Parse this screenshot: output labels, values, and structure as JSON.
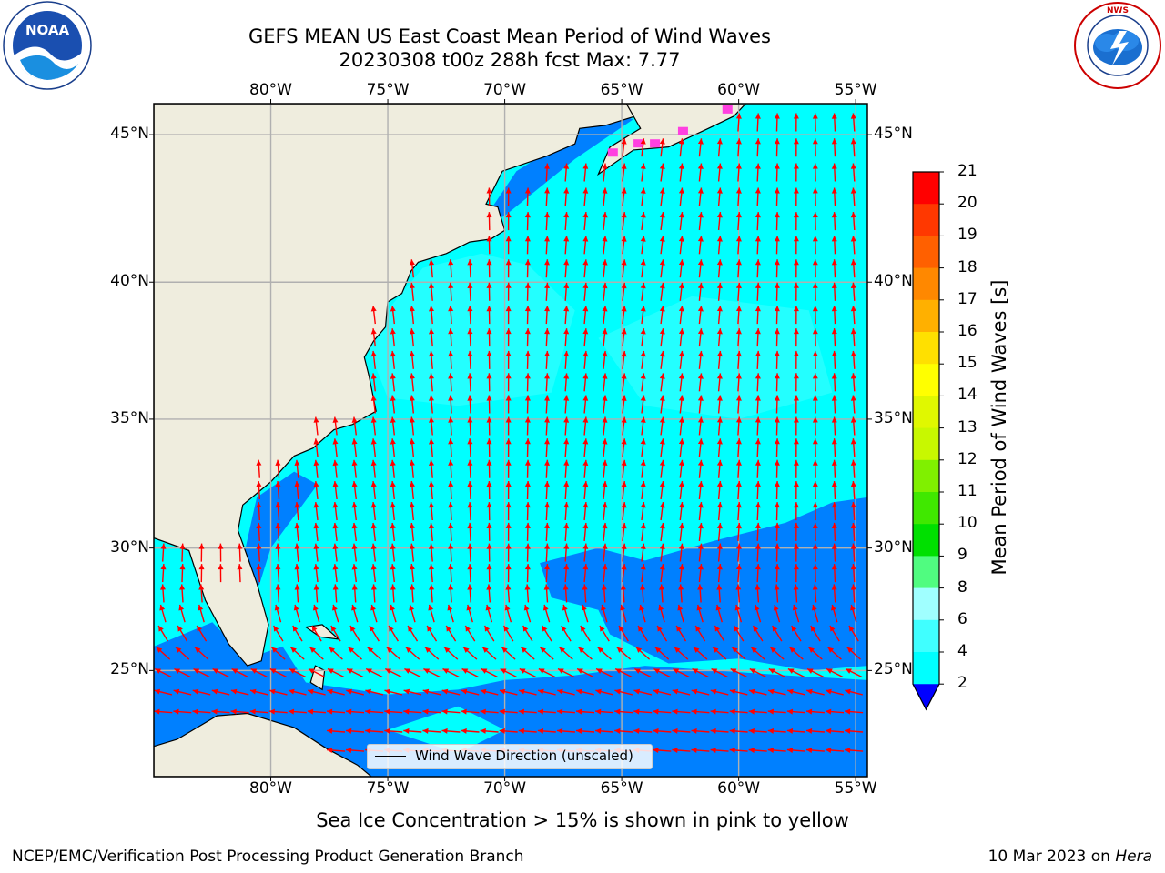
{
  "header": {
    "title_line1": "GEFS MEAN US East Coast Mean Period of Wind Waves",
    "title_line2": "20230308 t00z 288h fcst   Max: 7.77",
    "left_logo": "noaa-logo",
    "left_logo_text": "NOAA",
    "right_logo": "national-weather-service-logo",
    "right_logo_text": "NATIONAL WEATHER SERVICE"
  },
  "map": {
    "extent_lon": [
      -85,
      -54.5
    ],
    "extent_lat": [
      20.5,
      46
    ],
    "lon_ticks": [
      "80°W",
      "75°W",
      "70°W",
      "65°W",
      "60°W",
      "55°W"
    ],
    "lat_ticks": [
      "45°N",
      "40°N",
      "35°N",
      "30°N",
      "25°N"
    ],
    "legend_label": "Wind Wave Direction (unscaled)",
    "arrow_color": "#ff0000",
    "land_color": "#efedde",
    "grid": true
  },
  "colorbar": {
    "label": "Mean Period of Wind Waves [s]",
    "ticks": [
      "2",
      "4",
      "6",
      "8",
      "9",
      "10",
      "11",
      "12",
      "13",
      "14",
      "15",
      "16",
      "17",
      "18",
      "19",
      "20",
      "21"
    ],
    "colors": [
      "#0080ff",
      "#00ffff",
      "#40ffff",
      "#a0ffff",
      "#50fc80",
      "#00e000",
      "#40e800",
      "#80f000",
      "#c8f800",
      "#e0f800",
      "#ffff00",
      "#ffe000",
      "#ffb000",
      "#ff8800",
      "#ff6000",
      "#ff3800",
      "#ff0000"
    ],
    "under_color": "#0000ff"
  },
  "notes": {
    "sea_ice": "Sea Ice Concentration > 15% is shown in pink to yellow"
  },
  "footer": {
    "left": "NCEP/EMC/Verification Post Processing Product Generation Branch",
    "right_prefix": "10 Mar 2023 on ",
    "right_machine": "Hera"
  }
}
